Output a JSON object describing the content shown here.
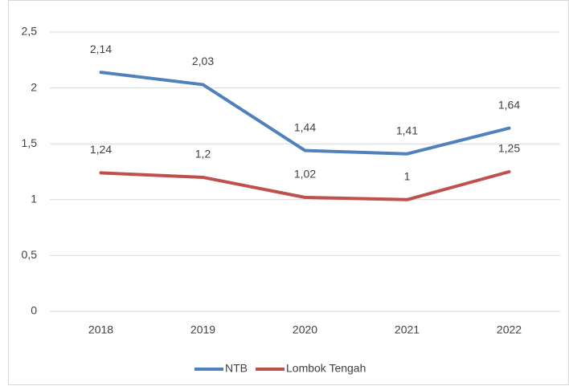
{
  "chart_data": {
    "type": "line",
    "categories": [
      "2018",
      "2019",
      "2020",
      "2021",
      "2022"
    ],
    "series": [
      {
        "name": "NTB",
        "color": "#4f81bd",
        "values": [
          2.14,
          2.03,
          1.44,
          1.41,
          1.64
        ],
        "value_labels": [
          "2,14",
          "2,03",
          "1,44",
          "1,41",
          "1,64"
        ]
      },
      {
        "name": "Lombok Tengah",
        "color": "#c0504d",
        "values": [
          1.24,
          1.2,
          1.02,
          1,
          1.25
        ],
        "value_labels": [
          "1,24",
          "1,2",
          "1,02",
          "1",
          "1,25"
        ]
      }
    ],
    "ylim": [
      0,
      2.5
    ],
    "yticks": [
      0,
      {
        "value": 0.5,
        "label": "0,5"
      },
      1,
      {
        "value": 1.5,
        "label": "1,5"
      },
      2,
      {
        "value": 2.5,
        "label": "2,5"
      }
    ],
    "grid": true,
    "legend": "bottom"
  }
}
